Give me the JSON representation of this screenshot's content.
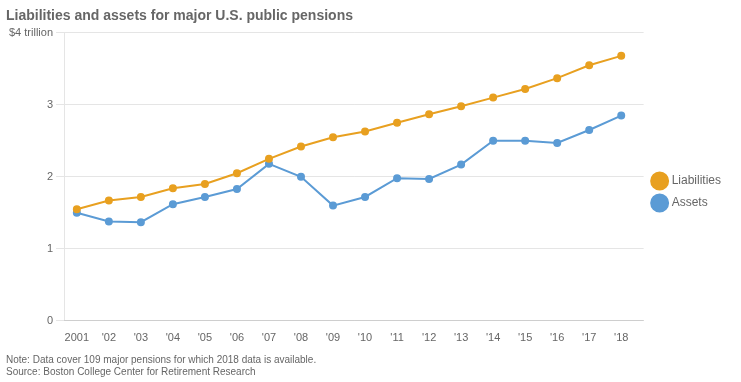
{
  "chart_data": {
    "type": "line",
    "title": "Liabilities and assets for major U.S. public pensions",
    "x": [
      2001,
      2002,
      2003,
      2004,
      2005,
      2006,
      2007,
      2008,
      2009,
      2010,
      2011,
      2012,
      2013,
      2014,
      2015,
      2016,
      2017,
      2018
    ],
    "series": [
      {
        "name": "Liabilities",
        "color": "#E8A020",
        "marker": "circle",
        "values": [
          1.55,
          1.67,
          1.72,
          1.84,
          1.9,
          2.05,
          2.25,
          2.42,
          2.55,
          2.63,
          2.75,
          2.87,
          2.98,
          3.1,
          3.22,
          3.37,
          3.55,
          3.68
        ]
      },
      {
        "name": "Assets",
        "color": "#5B9BD5",
        "marker": "circle",
        "values": [
          1.5,
          1.38,
          1.37,
          1.62,
          1.72,
          1.83,
          2.18,
          2.0,
          1.6,
          1.72,
          1.98,
          1.97,
          2.17,
          2.5,
          2.5,
          2.47,
          2.65,
          2.85
        ]
      }
    ],
    "xlim": [
      2000.6,
      2018.7
    ],
    "xticks": [
      {
        "value": 2001,
        "label": "2001"
      },
      {
        "value": 2002,
        "label": "'02"
      },
      {
        "value": 2003,
        "label": "'03"
      },
      {
        "value": 2004,
        "label": "'04"
      },
      {
        "value": 2005,
        "label": "'05"
      },
      {
        "value": 2006,
        "label": "'06"
      },
      {
        "value": 2007,
        "label": "'07"
      },
      {
        "value": 2008,
        "label": "'08"
      },
      {
        "value": 2009,
        "label": "'09"
      },
      {
        "value": 2010,
        "label": "'10"
      },
      {
        "value": 2011,
        "label": "'11"
      },
      {
        "value": 2012,
        "label": "'12"
      },
      {
        "value": 2013,
        "label": "'13"
      },
      {
        "value": 2014,
        "label": "'14"
      },
      {
        "value": 2015,
        "label": "'15"
      },
      {
        "value": 2016,
        "label": "'16"
      },
      {
        "value": 2017,
        "label": "'17"
      },
      {
        "value": 2018,
        "label": "'18"
      }
    ],
    "ylim": [
      0,
      4
    ],
    "yticks": [
      0,
      1,
      2,
      3,
      {
        "value": 4,
        "label": "$4 trillion"
      }
    ],
    "grid": true,
    "legend": "right",
    "annotations": [
      "Note: Data cover 109 major pensions for which 2018 data is available.",
      "Source: Boston College Center for Retirement Research"
    ]
  }
}
